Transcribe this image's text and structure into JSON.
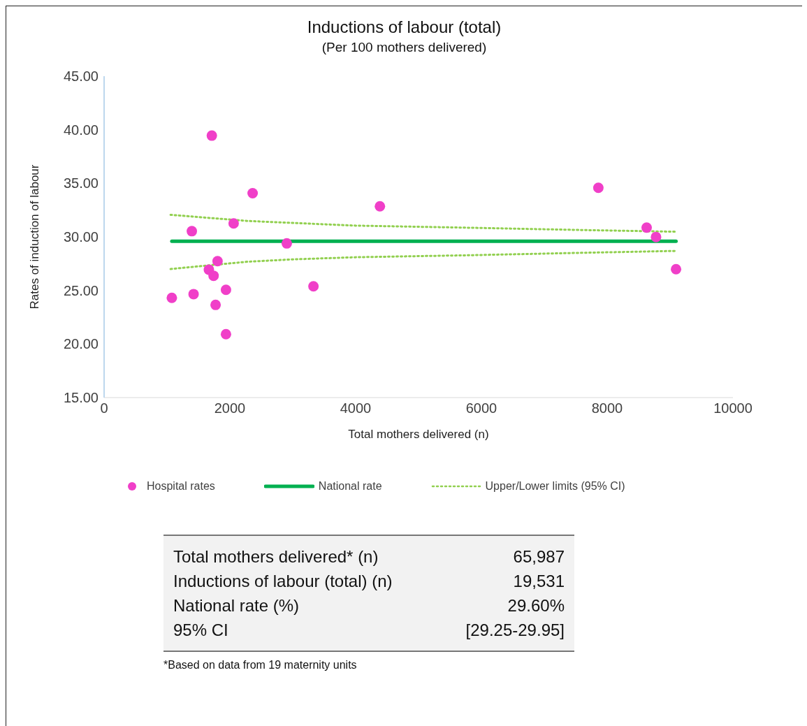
{
  "chart_data": {
    "type": "scatter",
    "title": "Inductions of labour (total)",
    "subtitle": "(Per 100 mothers delivered)",
    "xlabel": "Total  mothers delivered (n)",
    "ylabel": "Rates of induction of labour",
    "xlim": [
      0,
      10000
    ],
    "xticks": [
      0,
      2000,
      4000,
      6000,
      8000,
      10000
    ],
    "ylim": [
      15,
      45
    ],
    "yticks": [
      {
        "value": 15,
        "label": "15.00"
      },
      {
        "value": 20,
        "label": "20.00"
      },
      {
        "value": 25,
        "label": "25.00"
      },
      {
        "value": 30,
        "label": "30.00"
      },
      {
        "value": 35,
        "label": "35.00"
      },
      {
        "value": 40,
        "label": "40.00"
      },
      {
        "value": 45,
        "label": "45.00"
      }
    ],
    "legend": "bottom",
    "series": [
      {
        "name": "Hospital rates",
        "marker": "circle",
        "color": "#f03fc8",
        "x": [
          1713,
          2362,
          2060,
          1395,
          2905,
          1804,
          1666,
          1741,
          3329,
          1938,
          1077,
          1423,
          1773,
          1938,
          4386,
          7860,
          8628,
          8777,
          9095
        ],
        "values": [
          39.45,
          34.08,
          31.26,
          30.53,
          29.39,
          27.73,
          26.94,
          26.37,
          25.39,
          25.06,
          24.31,
          24.66,
          23.65,
          20.92,
          32.85,
          34.58,
          30.86,
          29.99,
          26.98
        ]
      },
      {
        "name": "National rate",
        "type": "line",
        "line_style": "solid",
        "color": "#00b050",
        "x": [
          1077,
          9095
        ],
        "values": [
          29.6,
          29.6
        ]
      },
      {
        "name": "Upper/Lower limits (95% CI)",
        "type": "line",
        "line_style": "dotted",
        "color": "#92d050",
        "x": [
          1057,
          1500,
          2276,
          3000,
          4000,
          5750,
          7500,
          9095
        ],
        "values": [
          32.06,
          31.85,
          31.49,
          31.3,
          31.05,
          30.86,
          30.65,
          30.48
        ]
      },
      {
        "type": "line",
        "line_style": "dotted",
        "color": "#92d050",
        "x": [
          1057,
          1500,
          2276,
          3000,
          4000,
          5750,
          7500,
          9095
        ],
        "values": [
          27.0,
          27.25,
          27.68,
          27.9,
          28.1,
          28.28,
          28.5,
          28.69
        ]
      }
    ],
    "annotations": [
      "Total mothers delivered* (n)",
      "65,987",
      "Inductions of labour (total) (n)",
      "19,531",
      "National rate (%)",
      "29.60%",
      "95% CI",
      "[29.25-29.95]",
      "*Based on data from 19 maternity units"
    ]
  }
}
